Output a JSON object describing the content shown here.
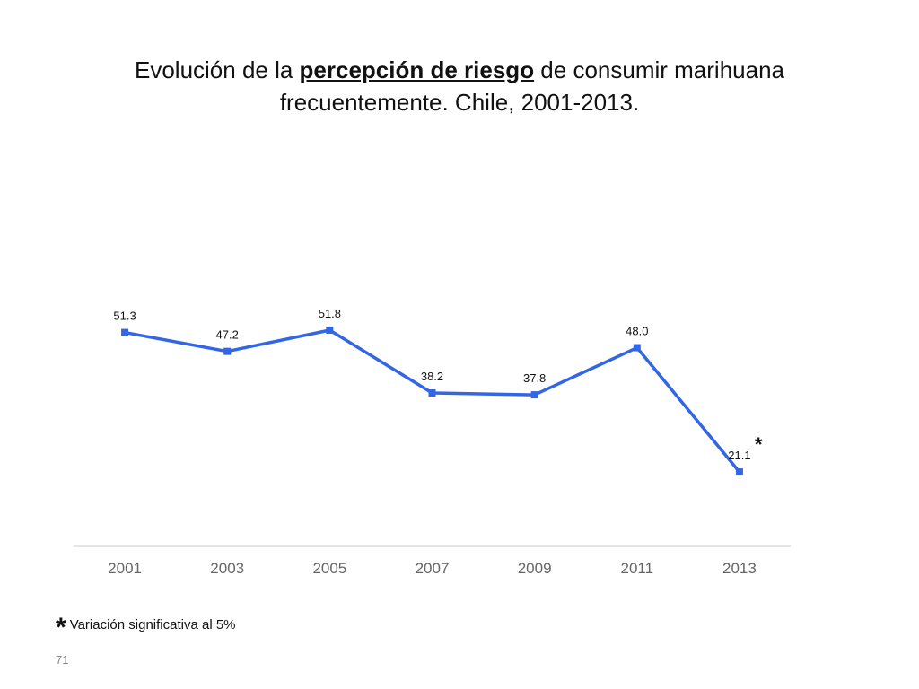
{
  "title": {
    "part1": "Evolución de la ",
    "highlight": "percepción de riesgo",
    "part2": " de consumir marihuana",
    "line2": "frecuentemente. Chile, 2001-2013."
  },
  "chart_data": {
    "type": "line",
    "categories": [
      "2001",
      "2003",
      "2005",
      "2007",
      "2009",
      "2011",
      "2013"
    ],
    "series": [
      {
        "values": [
          51.3,
          47.2,
          51.8,
          38.2,
          37.8,
          48.0,
          21.1
        ]
      }
    ],
    "data_labels": [
      "51.3",
      "47.2",
      "51.8",
      "38.2",
      "37.8",
      "48.0",
      "21.1"
    ],
    "annotations": [
      {
        "category": "2013",
        "text": "*"
      }
    ],
    "ylim": [
      5,
      65
    ],
    "grid": false,
    "colors": {
      "line": "#3366e6",
      "axis": "#cccccc",
      "tick_label": "#666666"
    }
  },
  "footnote": {
    "symbol": "*",
    "text": "Variación significativa al 5%"
  },
  "slide_number": "71"
}
